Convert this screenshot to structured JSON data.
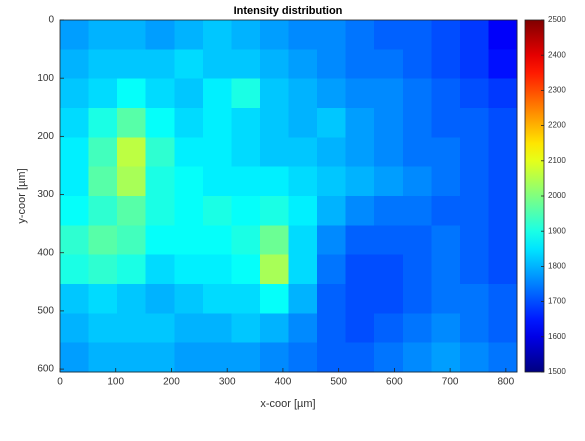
{
  "chart_data": {
    "type": "heatmap",
    "title": "Intensity distribution",
    "x_label": "x-coor [µm]",
    "y_label": "y-coor [µm]",
    "xlim": [
      0,
      820
    ],
    "xticks": [
      0,
      100,
      200,
      300,
      400,
      500,
      600,
      700,
      800
    ],
    "ylim": [
      0,
      605
    ],
    "yticks": [
      0,
      100,
      200,
      300,
      400,
      500,
      600
    ],
    "y_reversed": true,
    "clim": [
      1500,
      2500
    ],
    "cticks": [
      1500,
      1600,
      1700,
      1800,
      1900,
      2000,
      2100,
      2200,
      2300,
      2400,
      2500
    ],
    "colormap": "jet",
    "z": [
      [
        1780,
        1800,
        1800,
        1780,
        1800,
        1820,
        1800,
        1780,
        1760,
        1760,
        1740,
        1720,
        1720,
        1700,
        1680,
        1620
      ],
      [
        1800,
        1820,
        1820,
        1820,
        1840,
        1820,
        1820,
        1800,
        1780,
        1760,
        1740,
        1740,
        1720,
        1700,
        1680,
        1640
      ],
      [
        1820,
        1840,
        1880,
        1840,
        1820,
        1860,
        1900,
        1820,
        1800,
        1780,
        1760,
        1760,
        1740,
        1720,
        1700,
        1680
      ],
      [
        1840,
        1900,
        1960,
        1880,
        1840,
        1860,
        1840,
        1820,
        1800,
        1820,
        1780,
        1760,
        1740,
        1720,
        1720,
        1700
      ],
      [
        1860,
        1940,
        2060,
        1920,
        1860,
        1860,
        1840,
        1820,
        1820,
        1800,
        1780,
        1760,
        1740,
        1740,
        1720,
        1700
      ],
      [
        1860,
        1960,
        2040,
        1900,
        1880,
        1860,
        1860,
        1860,
        1840,
        1820,
        1800,
        1780,
        1760,
        1740,
        1720,
        1700
      ],
      [
        1880,
        1920,
        1960,
        1900,
        1880,
        1900,
        1880,
        1900,
        1860,
        1800,
        1760,
        1740,
        1740,
        1720,
        1720,
        1700
      ],
      [
        1920,
        1960,
        1940,
        1880,
        1880,
        1880,
        1900,
        1980,
        1840,
        1760,
        1720,
        1720,
        1720,
        1740,
        1720,
        1700
      ],
      [
        1900,
        1920,
        1900,
        1840,
        1860,
        1860,
        1880,
        2040,
        1840,
        1740,
        1700,
        1700,
        1720,
        1740,
        1720,
        1700
      ],
      [
        1820,
        1840,
        1820,
        1800,
        1820,
        1840,
        1840,
        1880,
        1800,
        1720,
        1700,
        1700,
        1720,
        1740,
        1740,
        1720
      ],
      [
        1800,
        1820,
        1820,
        1820,
        1800,
        1800,
        1820,
        1800,
        1760,
        1720,
        1700,
        1720,
        1740,
        1760,
        1740,
        1720
      ],
      [
        1780,
        1800,
        1800,
        1800,
        1780,
        1780,
        1780,
        1760,
        1740,
        1720,
        1720,
        1740,
        1760,
        1780,
        1760,
        1740
      ]
    ]
  }
}
